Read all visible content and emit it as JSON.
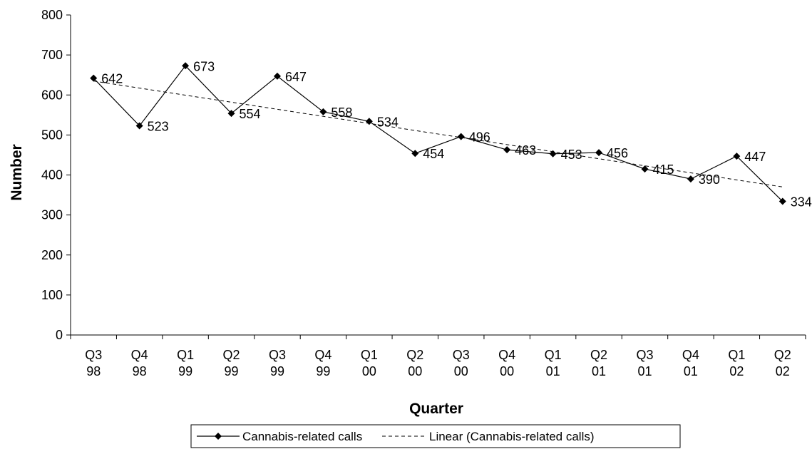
{
  "chart_data": {
    "type": "line",
    "xlabel": "Quarter",
    "ylabel": "Number",
    "ylim": [
      0,
      800
    ],
    "yticks": [
      "0",
      "100",
      "200",
      "300",
      "400",
      "500",
      "600",
      "700",
      "800"
    ],
    "categories": [
      [
        "Q3",
        "98"
      ],
      [
        "Q4",
        "98"
      ],
      [
        "Q1",
        "99"
      ],
      [
        "Q2",
        "99"
      ],
      [
        "Q3",
        "99"
      ],
      [
        "Q4",
        "99"
      ],
      [
        "Q1",
        "00"
      ],
      [
        "Q2",
        "00"
      ],
      [
        "Q3",
        "00"
      ],
      [
        "Q4",
        "00"
      ],
      [
        "Q1",
        "01"
      ],
      [
        "Q2",
        "01"
      ],
      [
        "Q3",
        "01"
      ],
      [
        "Q4",
        "01"
      ],
      [
        "Q1",
        "02"
      ],
      [
        "Q2",
        "02"
      ]
    ],
    "series": [
      {
        "name": "Cannabis-related calls",
        "values": [
          642,
          523,
          673,
          554,
          647,
          558,
          534,
          454,
          496,
          463,
          453,
          456,
          415,
          390,
          447,
          334
        ],
        "marker": "diamond",
        "color": "#000000"
      }
    ],
    "trendline": {
      "name": "Linear (Cannabis-related calls)",
      "type": "linear",
      "style": "dashed",
      "color": "#000000"
    },
    "grid": false,
    "legend": "bottom"
  }
}
